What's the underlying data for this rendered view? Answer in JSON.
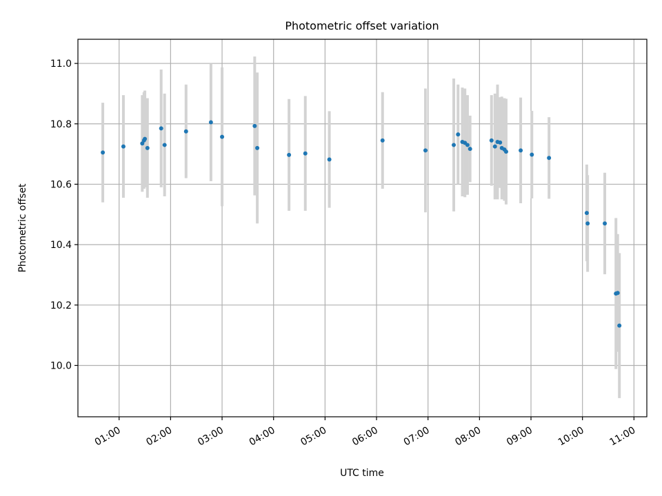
{
  "chart_data": {
    "type": "scatter",
    "title": "Photometric offset variation",
    "xlabel": "UTC time",
    "ylabel": "Photometric offset",
    "x_tick_labels": [
      "01:00",
      "02:00",
      "03:00",
      "04:00",
      "05:00",
      "06:00",
      "07:00",
      "08:00",
      "09:00",
      "10:00",
      "11:00"
    ],
    "y_tick_labels": [
      "10.0",
      "10.2",
      "10.4",
      "10.6",
      "10.8",
      "11.0"
    ],
    "xlim": [
      "00:12",
      "11:15"
    ],
    "ylim": [
      9.83,
      11.08
    ],
    "grid": true,
    "colors": {
      "marker": "#1f77b4",
      "errorbar": "#d3d3d3",
      "grid": "#b0b0b0"
    },
    "series": [
      {
        "points": [
          {
            "x": "00:41",
            "y": 10.705,
            "err": 0.165
          },
          {
            "x": "01:05",
            "y": 10.725,
            "err": 0.17
          },
          {
            "x": "01:27",
            "y": 10.735,
            "err": 0.16
          },
          {
            "x": "01:29",
            "y": 10.745,
            "err": 0.16
          },
          {
            "x": "01:30",
            "y": 10.75,
            "err": 0.16
          },
          {
            "x": "01:33",
            "y": 10.72,
            "err": 0.165
          },
          {
            "x": "01:49",
            "y": 10.785,
            "err": 0.195
          },
          {
            "x": "01:53",
            "y": 10.73,
            "err": 0.17
          },
          {
            "x": "02:18",
            "y": 10.775,
            "err": 0.155
          },
          {
            "x": "02:47",
            "y": 10.805,
            "err": 0.195
          },
          {
            "x": "03:00",
            "y": 10.757,
            "err": 0.23
          },
          {
            "x": "03:38",
            "y": 10.793,
            "err": 0.23
          },
          {
            "x": "03:41",
            "y": 10.72,
            "err": 0.25
          },
          {
            "x": "04:18",
            "y": 10.697,
            "err": 0.185
          },
          {
            "x": "04:37",
            "y": 10.702,
            "err": 0.19
          },
          {
            "x": "05:05",
            "y": 10.682,
            "err": 0.16
          },
          {
            "x": "06:07",
            "y": 10.745,
            "err": 0.16
          },
          {
            "x": "06:57",
            "y": 10.712,
            "err": 0.205
          },
          {
            "x": "07:30",
            "y": 10.73,
            "err": 0.22
          },
          {
            "x": "07:35",
            "y": 10.765,
            "err": 0.165
          },
          {
            "x": "07:40",
            "y": 10.74,
            "err": 0.18
          },
          {
            "x": "07:43",
            "y": 10.737,
            "err": 0.18
          },
          {
            "x": "07:46",
            "y": 10.73,
            "err": 0.165
          },
          {
            "x": "07:49",
            "y": 10.717,
            "err": 0.11
          },
          {
            "x": "08:14",
            "y": 10.745,
            "err": 0.15
          },
          {
            "x": "08:18",
            "y": 10.725,
            "err": 0.175
          },
          {
            "x": "08:21",
            "y": 10.74,
            "err": 0.19
          },
          {
            "x": "08:24",
            "y": 10.738,
            "err": 0.15
          },
          {
            "x": "08:26",
            "y": 10.72,
            "err": 0.17
          },
          {
            "x": "08:29",
            "y": 10.715,
            "err": 0.17
          },
          {
            "x": "08:31",
            "y": 10.708,
            "err": 0.175
          },
          {
            "x": "08:48",
            "y": 10.712,
            "err": 0.175
          },
          {
            "x": "09:01",
            "y": 10.698,
            "err": 0.145
          },
          {
            "x": "09:21",
            "y": 10.687,
            "err": 0.135
          },
          {
            "x": "10:05",
            "y": 10.505,
            "err": 0.16
          },
          {
            "x": "10:06",
            "y": 10.47,
            "err": 0.16
          },
          {
            "x": "10:26",
            "y": 10.47,
            "err": 0.168
          },
          {
            "x": "10:39",
            "y": 10.238,
            "err": 0.25
          },
          {
            "x": "10:41",
            "y": 10.24,
            "err": 0.195
          },
          {
            "x": "10:43",
            "y": 10.132,
            "err": 0.24
          }
        ]
      }
    ]
  }
}
